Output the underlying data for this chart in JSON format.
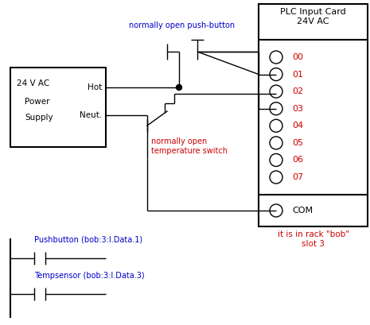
{
  "bg_color": "#ffffff",
  "line_color": "#000000",
  "title_color": "#000000",
  "label_color_blue": "#0000cc",
  "label_color_red": "#cc0000",
  "plc_title": "PLC Input Card\n24V AC",
  "ps_label1": "24 V AC",
  "ps_label2": "Power",
  "ps_label3": "Supply",
  "ps_hot": "Hot",
  "ps_neut": "Neut.",
  "inputs": [
    "00",
    "01",
    "02",
    "03",
    "04",
    "05",
    "06",
    "07"
  ],
  "com_label": "COM",
  "no_pushbutton_label": "normally open push-button",
  "no_tempswitch_label": "normally open\ntemperature switch",
  "rack_label": "it is in rack \"bob\"\nslot 3",
  "pb_label": "Pushbutton (bob:3:I.Data.1)",
  "ts_label": "Tempsensor (bob:3:I.Data.3)"
}
